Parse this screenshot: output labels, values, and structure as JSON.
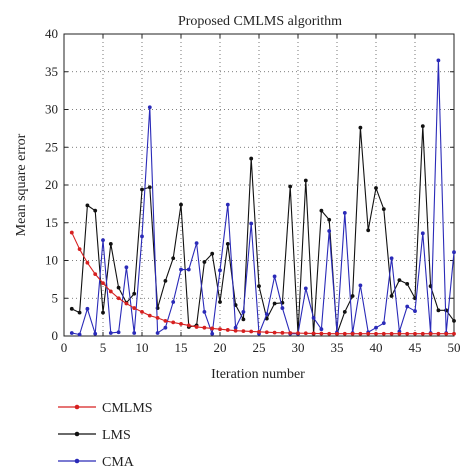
{
  "chart_data": {
    "type": "line",
    "title": "Proposed CMLMS algorithm",
    "xlabel": "Iteration number",
    "ylabel": "Mean square error",
    "xlim": [
      0,
      50
    ],
    "ylim": [
      0,
      40
    ],
    "xticks": [
      0,
      5,
      10,
      15,
      20,
      25,
      30,
      35,
      40,
      45,
      50
    ],
    "yticks": [
      0,
      5,
      10,
      15,
      20,
      25,
      30,
      35,
      40
    ],
    "grid": "dotted",
    "legend_position": "bottom-left",
    "x": [
      1,
      2,
      3,
      4,
      5,
      6,
      7,
      8,
      9,
      10,
      11,
      12,
      13,
      14,
      15,
      16,
      17,
      18,
      19,
      20,
      21,
      22,
      23,
      24,
      25,
      26,
      27,
      28,
      29,
      30,
      31,
      32,
      33,
      34,
      35,
      36,
      37,
      38,
      39,
      40,
      41,
      42,
      43,
      44,
      45,
      46,
      47,
      48,
      49,
      50
    ],
    "series": [
      {
        "name": "CMLMS",
        "color": "#d62020",
        "marker": "circle",
        "values": [
          13.7,
          11.5,
          9.7,
          8.2,
          7.0,
          5.9,
          5.0,
          4.3,
          3.7,
          3.2,
          2.7,
          2.4,
          2.0,
          1.8,
          1.6,
          1.4,
          1.2,
          1.1,
          1.0,
          0.9,
          0.8,
          0.7,
          0.65,
          0.6,
          0.55,
          0.5,
          0.45,
          0.42,
          0.4,
          0.38,
          0.36,
          0.34,
          0.32,
          0.3,
          0.3,
          0.3,
          0.3,
          0.3,
          0.3,
          0.3,
          0.3,
          0.3,
          0.3,
          0.3,
          0.3,
          0.3,
          0.3,
          0.3,
          0.3,
          0.3
        ]
      },
      {
        "name": "LMS",
        "color": "#111111",
        "marker": "circle",
        "values": [
          3.6,
          3.1,
          17.3,
          16.6,
          3.1,
          12.2,
          6.4,
          4.4,
          5.6,
          19.4,
          19.7,
          3.7,
          7.3,
          10.3,
          17.4,
          1.2,
          1.4,
          9.8,
          10.9,
          4.5,
          12.2,
          4.1,
          2.2,
          23.5,
          6.6,
          2.3,
          4.3,
          4.4,
          19.8,
          0.3,
          20.6,
          0.3,
          16.6,
          15.4,
          0.3,
          3.2,
          5.3,
          27.6,
          14.0,
          19.6,
          16.8,
          5.3,
          7.4,
          6.9,
          5.0,
          27.8,
          6.6,
          3.4,
          3.4,
          2.0
        ]
      },
      {
        "name": "CMA",
        "color": "#2a2ab8",
        "marker": "circle",
        "values": [
          0.4,
          0.2,
          3.6,
          0.3,
          12.7,
          0.4,
          0.5,
          9.1,
          0.4,
          13.2,
          30.3,
          0.4,
          1.1,
          4.5,
          8.8,
          8.8,
          12.3,
          3.2,
          0.3,
          8.7,
          17.4,
          1.1,
          3.2,
          14.9,
          0.3,
          2.9,
          7.9,
          3.7,
          0.3,
          0.3,
          6.3,
          2.4,
          0.9,
          13.9,
          0.5,
          16.3,
          0.4,
          6.7,
          0.5,
          1.1,
          1.7,
          10.3,
          0.6,
          3.9,
          3.3,
          13.6,
          0.4,
          36.5,
          0.4,
          11.1
        ]
      }
    ]
  }
}
